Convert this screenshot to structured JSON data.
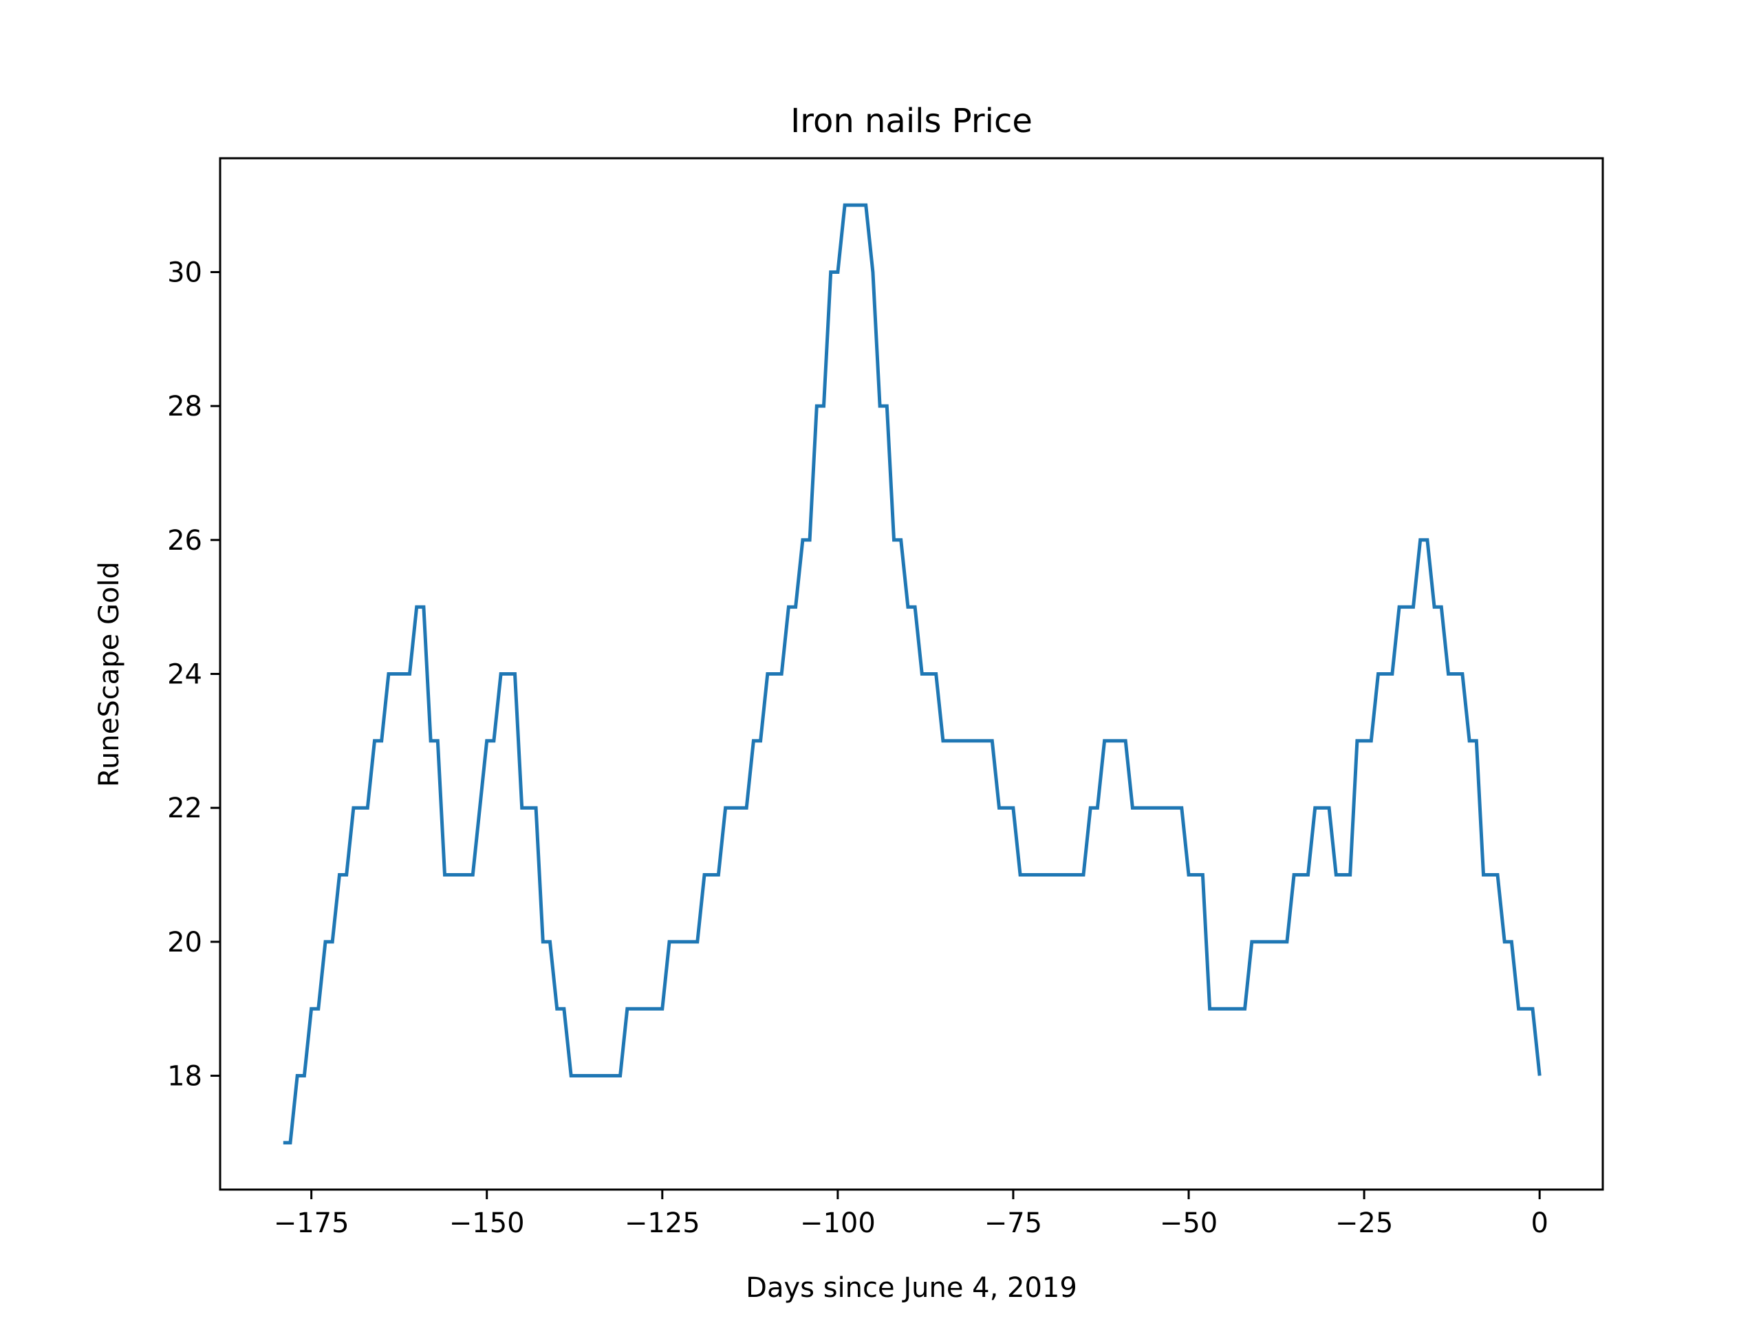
{
  "chart_data": {
    "type": "line",
    "title": "Iron nails Price",
    "xlabel": "Days since June 4, 2019",
    "ylabel": "RuneScape Gold",
    "xlim": [
      -188,
      9
    ],
    "ylim": [
      16.3,
      31.7
    ],
    "xticks": [
      -175,
      -150,
      -125,
      -100,
      -75,
      -50,
      -25,
      0
    ],
    "xtick_labels": [
      "−175",
      "−150",
      "−125",
      "−100",
      "−75",
      "−50",
      "−25",
      "0"
    ],
    "yticks": [
      18,
      20,
      22,
      24,
      26,
      28,
      30
    ],
    "ytick_labels": [
      "18",
      "20",
      "22",
      "24",
      "26",
      "28",
      "30"
    ],
    "grid": false,
    "legend": "none",
    "series": [
      {
        "color": "#1f77b4",
        "x": [
          -179,
          -178,
          -177,
          -176,
          -175,
          -174,
          -173,
          -172,
          -171,
          -170,
          -169,
          -168,
          -167,
          -166,
          -165,
          -164,
          -163,
          -162,
          -161,
          -160,
          -159,
          -158,
          -157,
          -156,
          -155,
          -154,
          -153,
          -152,
          -151,
          -150,
          -149,
          -148,
          -147,
          -146,
          -145,
          -144,
          -143,
          -142,
          -141,
          -140,
          -139,
          -138,
          -137,
          -136,
          -135,
          -134,
          -133,
          -132,
          -131,
          -130,
          -129,
          -128,
          -127,
          -126,
          -125,
          -124,
          -123,
          -122,
          -121,
          -120,
          -119,
          -118,
          -117,
          -116,
          -115,
          -114,
          -113,
          -112,
          -111,
          -110,
          -109,
          -108,
          -107,
          -106,
          -105,
          -104,
          -103,
          -102,
          -101,
          -100,
          -99,
          -98,
          -97,
          -96,
          -95,
          -94,
          -93,
          -92,
          -91,
          -90,
          -89,
          -88,
          -87,
          -86,
          -85,
          -84,
          -83,
          -82,
          -81,
          -80,
          -79,
          -78,
          -77,
          -76,
          -75,
          -74,
          -73,
          -72,
          -71,
          -70,
          -69,
          -68,
          -67,
          -66,
          -65,
          -64,
          -63,
          -62,
          -61,
          -60,
          -59,
          -58,
          -57,
          -56,
          -55,
          -54,
          -53,
          -52,
          -51,
          -50,
          -49,
          -48,
          -47,
          -46,
          -45,
          -44,
          -43,
          -42,
          -41,
          -40,
          -39,
          -38,
          -37,
          -36,
          -35,
          -34,
          -33,
          -32,
          -31,
          -30,
          -29,
          -28,
          -27,
          -26,
          -25,
          -24,
          -23,
          -22,
          -21,
          -20,
          -19,
          -18,
          -17,
          -16,
          -15,
          -14,
          -13,
          -12,
          -11,
          -10,
          -9,
          -8,
          -7,
          -6,
          -5,
          -4,
          -3,
          -2,
          -1,
          0
        ],
        "y": [
          17,
          17,
          18,
          18,
          19,
          19,
          20,
          20,
          21,
          21,
          22,
          22,
          22,
          23,
          23,
          24,
          24,
          24,
          24,
          25,
          25,
          23,
          23,
          21,
          21,
          21,
          21,
          21,
          22,
          23,
          23,
          24,
          24,
          24,
          22,
          22,
          22,
          20,
          20,
          19,
          19,
          18,
          18,
          18,
          18,
          18,
          18,
          18,
          18,
          19,
          19,
          19,
          19,
          19,
          19,
          20,
          20,
          20,
          20,
          20,
          21,
          21,
          21,
          22,
          22,
          22,
          22,
          23,
          23,
          24,
          24,
          24,
          25,
          25,
          26,
          26,
          28,
          28,
          30,
          30,
          31,
          31,
          31,
          31,
          30,
          28,
          28,
          26,
          26,
          25,
          25,
          24,
          24,
          24,
          23,
          23,
          23,
          23,
          23,
          23,
          23,
          23,
          22,
          22,
          22,
          21,
          21,
          21,
          21,
          21,
          21,
          21,
          21,
          21,
          21,
          22,
          22,
          23,
          23,
          23,
          23,
          22,
          22,
          22,
          22,
          22,
          22,
          22,
          22,
          21,
          21,
          21,
          19,
          19,
          19,
          19,
          19,
          19,
          20,
          20,
          20,
          20,
          20,
          20,
          21,
          21,
          21,
          22,
          22,
          22,
          21,
          21,
          21,
          23,
          23,
          23,
          24,
          24,
          24,
          25,
          25,
          25,
          26,
          26,
          25,
          25,
          24,
          24,
          24,
          23,
          23,
          21,
          21,
          21,
          20,
          20,
          19,
          19,
          19,
          18
        ]
      }
    ]
  }
}
